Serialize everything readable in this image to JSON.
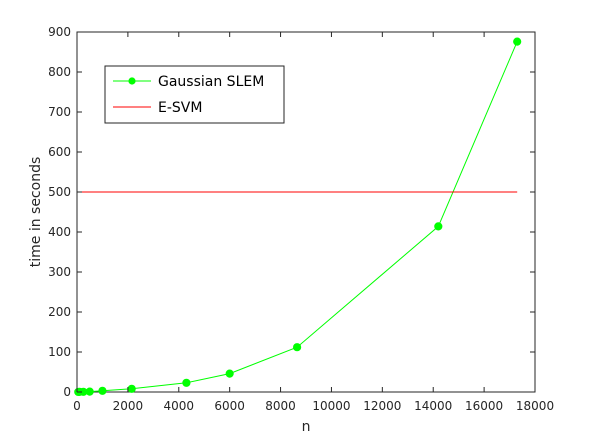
{
  "chart_data": {
    "type": "line",
    "title": "",
    "xlabel": "n",
    "ylabel": "time in seconds",
    "xlim": [
      0,
      18000
    ],
    "ylim": [
      0,
      900
    ],
    "xticks": [
      0,
      2000,
      4000,
      6000,
      8000,
      10000,
      12000,
      14000,
      16000,
      18000
    ],
    "yticks": [
      0,
      100,
      200,
      300,
      400,
      500,
      600,
      700,
      800,
      900
    ],
    "grid": false,
    "legend_position": "top-left",
    "series": [
      {
        "name": "Gaussian SLEM",
        "color": "#00ff00",
        "marker": "circle",
        "x": [
          50,
          100,
          250,
          500,
          1000,
          2150,
          4300,
          6000,
          8650,
          14200,
          17300
        ],
        "y": [
          0.1,
          0.3,
          0.5,
          1,
          3,
          8,
          23,
          46,
          112,
          414,
          876
        ]
      },
      {
        "name": "E-SVM",
        "color": "#ff0000",
        "marker": "none",
        "x": [
          0,
          17300
        ],
        "y": [
          500,
          500
        ]
      }
    ]
  }
}
